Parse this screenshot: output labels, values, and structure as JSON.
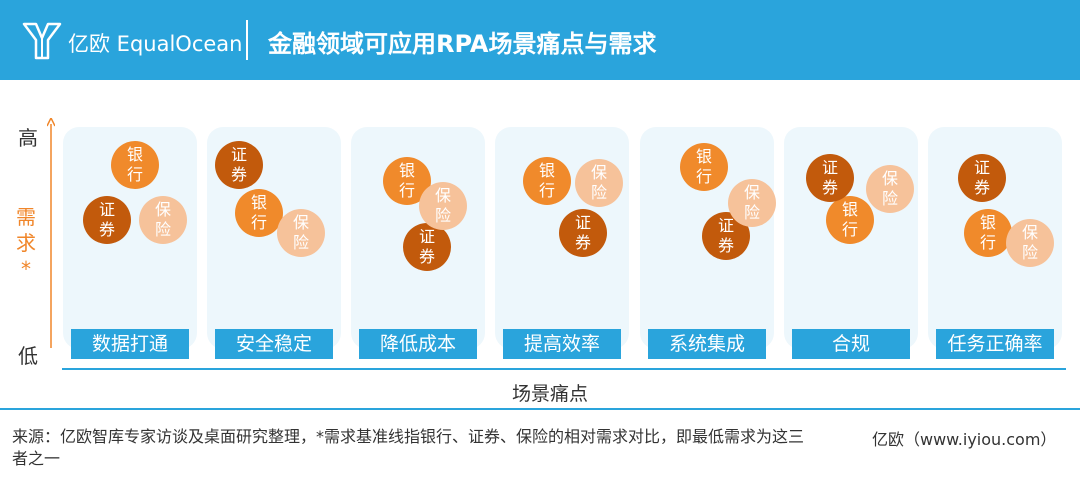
{
  "header": {
    "brand": "亿欧 EqualOcean",
    "title": "金融领域可应用RPA场景痛点与需求",
    "bg_color": "#2aa4dc"
  },
  "chart_data": {
    "type": "scatter",
    "title": "金融领域可应用RPA场景痛点与需求",
    "xlabel": "场景痛点",
    "ylabel": "需求*",
    "ylabel_high": "高",
    "ylabel_low": "低",
    "categories": [
      "数据打通",
      "安全稳定",
      "降低成本",
      "提高效率",
      "系统集成",
      "合规",
      "任务正确率"
    ],
    "series": [
      {
        "name": "银行",
        "color": "#f08a2b",
        "values": [
          0.9,
          0.55,
          0.78,
          0.78,
          0.88,
          0.5,
          0.4
        ]
      },
      {
        "name": "证券",
        "color": "#c25a0c",
        "values": [
          0.5,
          0.9,
          0.3,
          0.4,
          0.38,
          0.8,
          0.8
        ]
      },
      {
        "name": "保险",
        "color": "#f6c29a",
        "values": [
          0.5,
          0.4,
          0.6,
          0.77,
          0.62,
          0.72,
          0.33
        ]
      }
    ]
  },
  "footer": {
    "note": "来源：亿欧智库专家访谈及桌面研究整理，*需求基准线指银行、证券、保险的相对需求对比，即最低需求为这三者之一",
    "source": "亿欧（www.iyiou.com）"
  }
}
